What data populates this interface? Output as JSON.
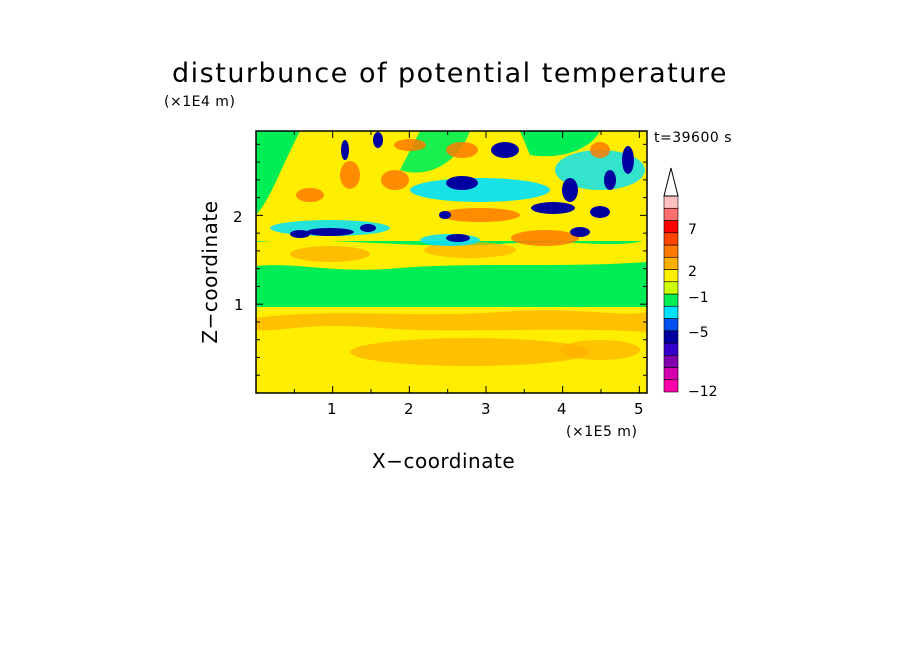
{
  "chart_data": {
    "type": "heatmap",
    "title": "disturbunce of potential temperature",
    "xlabel": "X−coordinate",
    "ylabel": "Z−coordinate",
    "x_unit": "(×1E5 m)",
    "y_unit": "(×1E4 m)",
    "time_label": "t=39600 s",
    "xlim": [
      0,
      5.1
    ],
    "ylim": [
      0,
      2.95
    ],
    "x_ticks": [
      "1",
      "2",
      "3",
      "4",
      "5"
    ],
    "y_ticks": [
      "1",
      "2"
    ],
    "colorbar": {
      "tick_labels": [
        "7",
        "2",
        "−1",
        "−5",
        "−12"
      ],
      "colors": [
        "#ff00aa",
        "#d400b0",
        "#8000b0",
        "#3300cc",
        "#0000a0",
        "#0050f0",
        "#00e0ff",
        "#00ee55",
        "#ccff00",
        "#ffee00",
        "#ffb000",
        "#ff7a00",
        "#ff4400",
        "#ff0000",
        "#ff7070",
        "#ffc0c0"
      ],
      "extend_top_arrow": true
    }
  },
  "colors": {
    "background": "#ffffff",
    "band_surface": "#ffee00",
    "band_warm": "#ffb000",
    "band_neutral": "#00ee55",
    "band_cool": "#00e0ff",
    "band_cold": "#0000a0",
    "band_hot": "#ff7a00"
  }
}
